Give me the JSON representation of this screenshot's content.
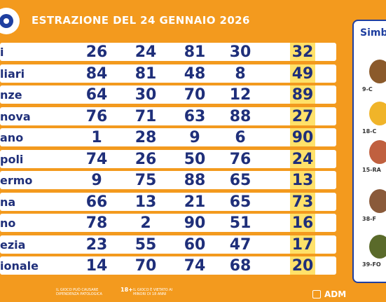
{
  "header": {
    "title": "ESTRAZIONE DEL 24 GENNAIO 2026"
  },
  "rows": [
    {
      "city": "i",
      "numbers": [
        "26",
        "24",
        "81",
        "30"
      ],
      "highlight": "32"
    },
    {
      "city": "liari",
      "numbers": [
        "84",
        "81",
        "48",
        "8"
      ],
      "highlight": "49"
    },
    {
      "city": "nze",
      "numbers": [
        "64",
        "30",
        "70",
        "12"
      ],
      "highlight": "89"
    },
    {
      "city": "nova",
      "numbers": [
        "76",
        "71",
        "63",
        "88"
      ],
      "highlight": "27"
    },
    {
      "city": "ano",
      "numbers": [
        "1",
        "28",
        "9",
        "6"
      ],
      "highlight": "90"
    },
    {
      "city": "poli",
      "numbers": [
        "74",
        "26",
        "50",
        "76"
      ],
      "highlight": "24"
    },
    {
      "city": "ermo",
      "numbers": [
        "9",
        "75",
        "88",
        "65"
      ],
      "highlight": "13"
    },
    {
      "city": "na",
      "numbers": [
        "66",
        "13",
        "21",
        "65"
      ],
      "highlight": "73"
    },
    {
      "city": "no",
      "numbers": [
        "78",
        "2",
        "90",
        "51"
      ],
      "highlight": "16"
    },
    {
      "city": "ezia",
      "numbers": [
        "23",
        "55",
        "60",
        "47"
      ],
      "highlight": "17"
    },
    {
      "city": "ionale",
      "numbers": [
        "14",
        "70",
        "74",
        "68"
      ],
      "highlight": "20"
    }
  ],
  "sidebar": {
    "title": "Simb",
    "symbols": [
      {
        "label": "9-C",
        "icon": "cake-icon"
      },
      {
        "label": "18-C",
        "icon": "candle-icon"
      },
      {
        "label": "15-RA",
        "icon": "child-face-icon"
      },
      {
        "label": "38-F",
        "icon": "bread-icon"
      },
      {
        "label": "39-FO",
        "icon": "scissors-icon"
      }
    ]
  },
  "footer": {
    "notice1": "IL GIOCO PUÒ CAUSARE DIPENDENZA PATOLOGICA",
    "notice2": "IL GIOCO È VIETATO AI MINORI DI 18 ANNI",
    "age_badge": "18+",
    "brand": "ADM"
  },
  "colors": {
    "background": "#f39a1e",
    "number_text": "#1f2f7a",
    "highlight": "#ffe16a",
    "accent": "#1f3fa0"
  }
}
